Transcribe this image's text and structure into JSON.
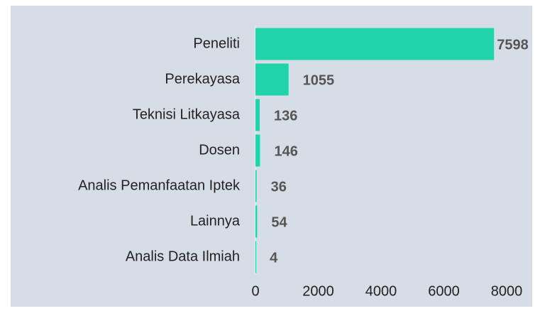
{
  "chart_data": {
    "type": "bar",
    "orientation": "horizontal",
    "categories": [
      "Peneliti",
      "Perekayasa",
      "Teknisi Litkayasa",
      "Dosen",
      "Analis Pemanfaatan Iptek",
      "Lainnya",
      "Analis Data Ilmiah"
    ],
    "values": [
      7598,
      1055,
      136,
      146,
      36,
      54,
      4
    ],
    "color": "#20d3a8",
    "xlim": [
      0,
      8000
    ],
    "xticks": [
      0,
      2000,
      4000,
      6000,
      8000
    ],
    "grid": false
  }
}
